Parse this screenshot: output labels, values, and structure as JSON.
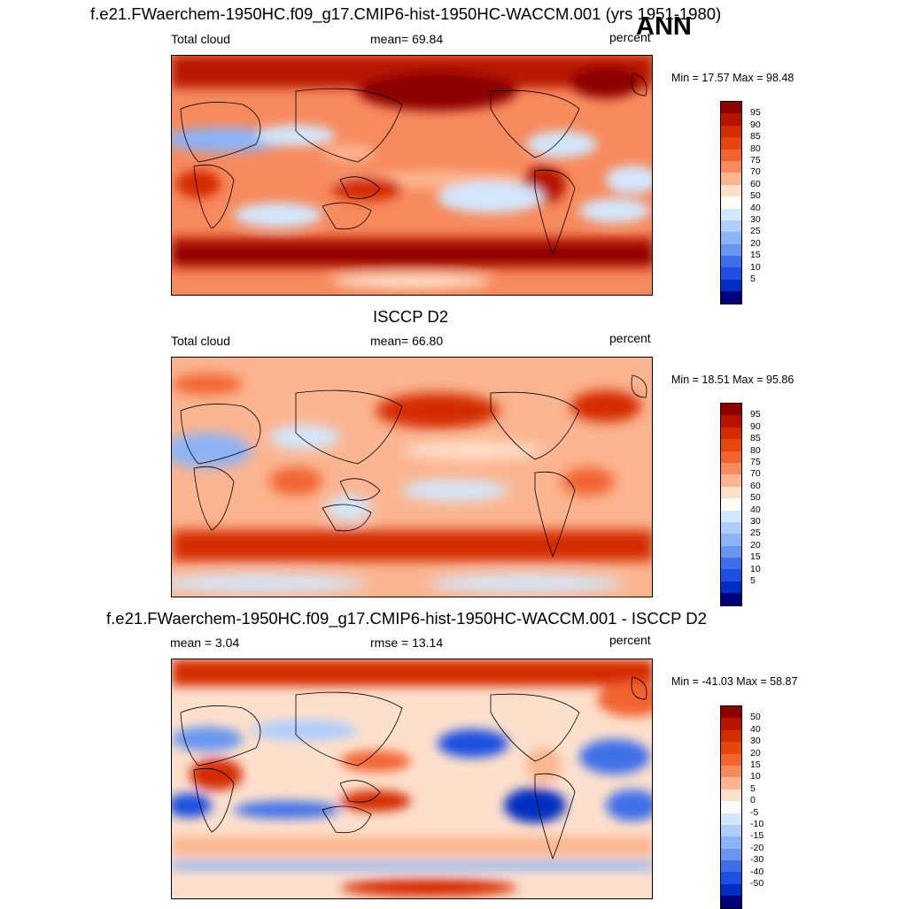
{
  "header": {
    "title": "f.e21.FWaerchem-1950HC.f09_g17.CMIP6-hist-1950HC-WACCM.001 (yrs 1951-1980)",
    "season": "ANN"
  },
  "panels": [
    {
      "id": "model",
      "title": "",
      "left_label": "Total cloud",
      "center_label": "mean=  69.84",
      "right_label": "percent",
      "stats": "Min =  17.57 Max =  98.48",
      "colorbar": {
        "labels": [
          "95",
          "90",
          "85",
          "80",
          "75",
          "70",
          "60",
          "50",
          "40",
          "30",
          "25",
          "20",
          "15",
          "10",
          "5"
        ],
        "colors": [
          "#8c0000",
          "#b71400",
          "#d42c00",
          "#e5470d",
          "#f26430",
          "#f78a5d",
          "#fbb590",
          "#fde0cc",
          "#fdfbf6",
          "#d3e7fd",
          "#b0cdfa",
          "#8cb3f6",
          "#6795f0",
          "#3f6fe8",
          "#1f4fe0",
          "#002ec0",
          "#00007a"
        ]
      }
    },
    {
      "id": "obs",
      "title": "ISCCP D2",
      "left_label": "Total cloud",
      "center_label": "mean=  66.80",
      "right_label": "percent",
      "stats": "Min =  18.51 Max =  95.86",
      "colorbar": {
        "labels": [
          "95",
          "90",
          "85",
          "80",
          "75",
          "70",
          "60",
          "50",
          "40",
          "30",
          "25",
          "20",
          "15",
          "10",
          "5"
        ],
        "colors": [
          "#8c0000",
          "#b71400",
          "#d42c00",
          "#e5470d",
          "#f26430",
          "#f78a5d",
          "#fbb590",
          "#fde0cc",
          "#fdfbf6",
          "#d3e7fd",
          "#b0cdfa",
          "#8cb3f6",
          "#6795f0",
          "#3f6fe8",
          "#1f4fe0",
          "#002ec0",
          "#00007a"
        ]
      }
    },
    {
      "id": "diff",
      "title": "f.e21.FWaerchem-1950HC.f09_g17.CMIP6-hist-1950HC-WACCM.001 - ISCCP D2",
      "left_label": "mean =   3.04",
      "center_label": "rmse =  13.14",
      "right_label": "percent",
      "stats": "Min = -41.03 Max =  58.87",
      "colorbar": {
        "labels": [
          "50",
          "40",
          "30",
          "20",
          "15",
          "10",
          "5",
          "0",
          "-5",
          "-10",
          "-15",
          "-20",
          "-30",
          "-40",
          "-50"
        ],
        "colors": [
          "#8c0000",
          "#b71400",
          "#d42c00",
          "#e5470d",
          "#f26430",
          "#f78a5d",
          "#fbb590",
          "#fde0cc",
          "#fdfbf6",
          "#d3e7fd",
          "#b0cdfa",
          "#8cb3f6",
          "#6795f0",
          "#3f6fe8",
          "#1f4fe0",
          "#002ec0",
          "#00007a"
        ]
      }
    }
  ]
}
